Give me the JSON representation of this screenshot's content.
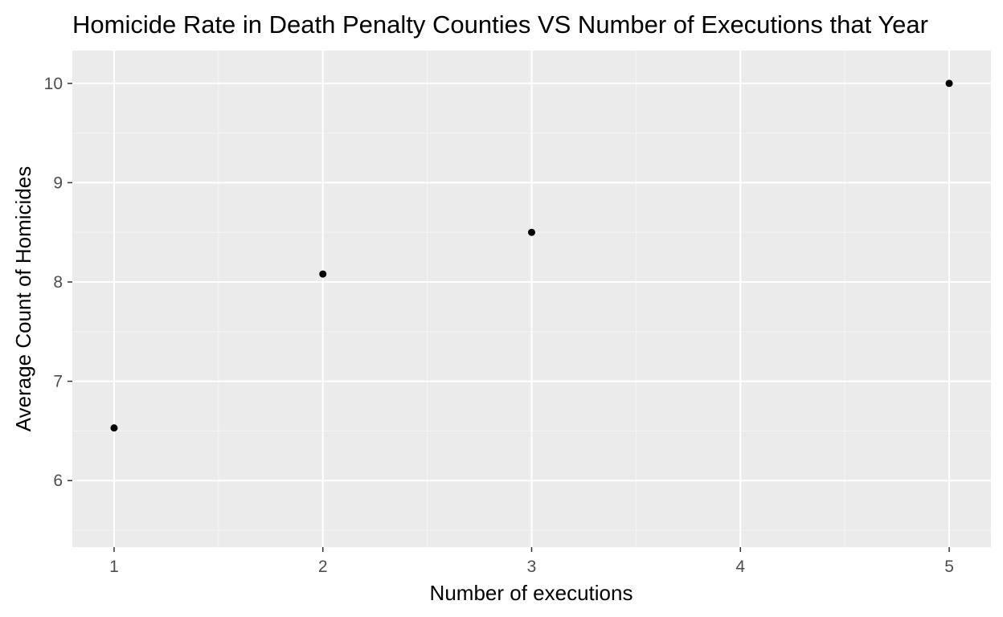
{
  "chart_data": {
    "type": "scatter",
    "title": "Homicide Rate in Death Penalty Counties VS Number of Executions that Year",
    "xlabel": "Number of executions",
    "ylabel": "Average Count of Homicides",
    "xlim": [
      0.8,
      5.2
    ],
    "ylim": [
      5.33,
      10.33
    ],
    "xticks": [
      1,
      2,
      3,
      4,
      5
    ],
    "yticks": [
      6,
      7,
      8,
      9,
      10
    ],
    "xtick_labels": [
      "1",
      "2",
      "3",
      "4",
      "5"
    ],
    "ytick_labels": [
      "6",
      "7",
      "8",
      "9",
      "10"
    ],
    "grid": true,
    "points": [
      {
        "x": 1,
        "y": 6.53
      },
      {
        "x": 2,
        "y": 8.08
      },
      {
        "x": 3,
        "y": 8.5
      },
      {
        "x": 5,
        "y": 10
      }
    ],
    "colors": {
      "panel_background": "#ebebeb",
      "grid_major": "#ffffff",
      "grid_minor": "#f5f5f5",
      "point": "#000000",
      "tick_text": "#4d4d4d",
      "tick_mark": "#333333"
    }
  }
}
